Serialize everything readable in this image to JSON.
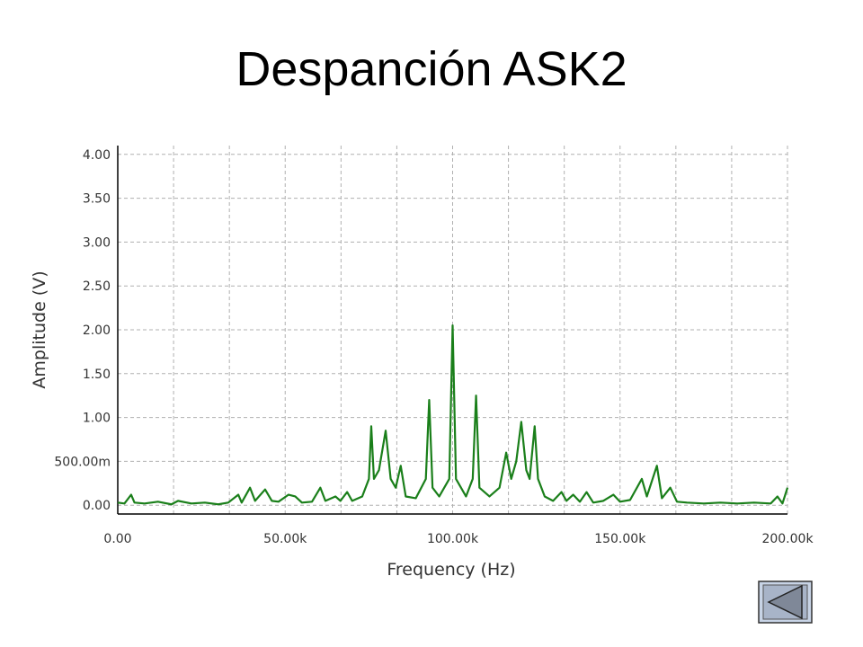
{
  "chart_data": {
    "type": "line",
    "title": "Despanción ASK2",
    "xlabel": "Frequency (Hz)",
    "ylabel": "Amplitude (V)",
    "xlim": [
      0,
      200000
    ],
    "ylim": [
      -0.1,
      4.1
    ],
    "xticks": [
      {
        "value": 0,
        "label": "0.00"
      },
      {
        "value": 50000,
        "label": "50.00k"
      },
      {
        "value": 100000,
        "label": "100.00k"
      },
      {
        "value": 150000,
        "label": "150.00k"
      },
      {
        "value": 200000,
        "label": "200.00k"
      }
    ],
    "x_minor_ticks": [
      16666.67,
      33333.33,
      66666.67,
      83333.33,
      116666.67,
      133333.33,
      166666.67,
      183333.33
    ],
    "yticks": [
      {
        "value": 0,
        "label": "0.00"
      },
      {
        "value": 0.5,
        "label": "500.00m"
      },
      {
        "value": 1,
        "label": "1.00"
      },
      {
        "value": 1.5,
        "label": "1.50"
      },
      {
        "value": 2,
        "label": "2.00"
      },
      {
        "value": 2.5,
        "label": "2.50"
      },
      {
        "value": 3,
        "label": "3.00"
      },
      {
        "value": 3.5,
        "label": "3.50"
      },
      {
        "value": 4,
        "label": "4.00"
      }
    ],
    "grid": true,
    "series": [
      {
        "name": "Amplitude",
        "color": "#1a7f1a",
        "x": [
          0,
          2000,
          4000,
          5000,
          8000,
          12000,
          16000,
          18000,
          22000,
          26000,
          30000,
          33000,
          36000,
          37000,
          39500,
          41000,
          44000,
          46000,
          48000,
          51000,
          53000,
          55000,
          58000,
          60500,
          62000,
          65000,
          66500,
          68500,
          70000,
          73000,
          75000,
          75700,
          76500,
          78000,
          80000,
          81500,
          83000,
          84500,
          86000,
          89000,
          92000,
          93000,
          94000,
          96000,
          99000,
          100000,
          101000,
          104000,
          106000,
          107000,
          108000,
          111000,
          114000,
          116000,
          117500,
          119000,
          120500,
          122000,
          123000,
          124500,
          125500,
          127500,
          130000,
          132500,
          134000,
          136000,
          138000,
          140000,
          142000,
          145000,
          148000,
          150000,
          153000,
          156500,
          158000,
          161000,
          162500,
          165000,
          167000,
          170000,
          175000,
          180000,
          185000,
          190000,
          195000,
          197000,
          198500,
          200000
        ],
        "values": [
          0.03,
          0.02,
          0.12,
          0.03,
          0.02,
          0.04,
          0.01,
          0.05,
          0.02,
          0.03,
          0.01,
          0.03,
          0.12,
          0.03,
          0.2,
          0.05,
          0.18,
          0.05,
          0.04,
          0.12,
          0.1,
          0.03,
          0.04,
          0.2,
          0.05,
          0.1,
          0.05,
          0.15,
          0.05,
          0.1,
          0.3,
          0.9,
          0.3,
          0.4,
          0.85,
          0.3,
          0.2,
          0.45,
          0.1,
          0.08,
          0.3,
          1.2,
          0.2,
          0.1,
          0.3,
          2.05,
          0.3,
          0.1,
          0.3,
          1.25,
          0.2,
          0.1,
          0.2,
          0.6,
          0.3,
          0.5,
          0.95,
          0.4,
          0.3,
          0.9,
          0.3,
          0.1,
          0.05,
          0.15,
          0.05,
          0.12,
          0.04,
          0.15,
          0.03,
          0.05,
          0.12,
          0.04,
          0.06,
          0.3,
          0.1,
          0.45,
          0.08,
          0.2,
          0.04,
          0.03,
          0.02,
          0.03,
          0.02,
          0.03,
          0.02,
          0.1,
          0.02,
          0.2
        ]
      }
    ]
  }
}
